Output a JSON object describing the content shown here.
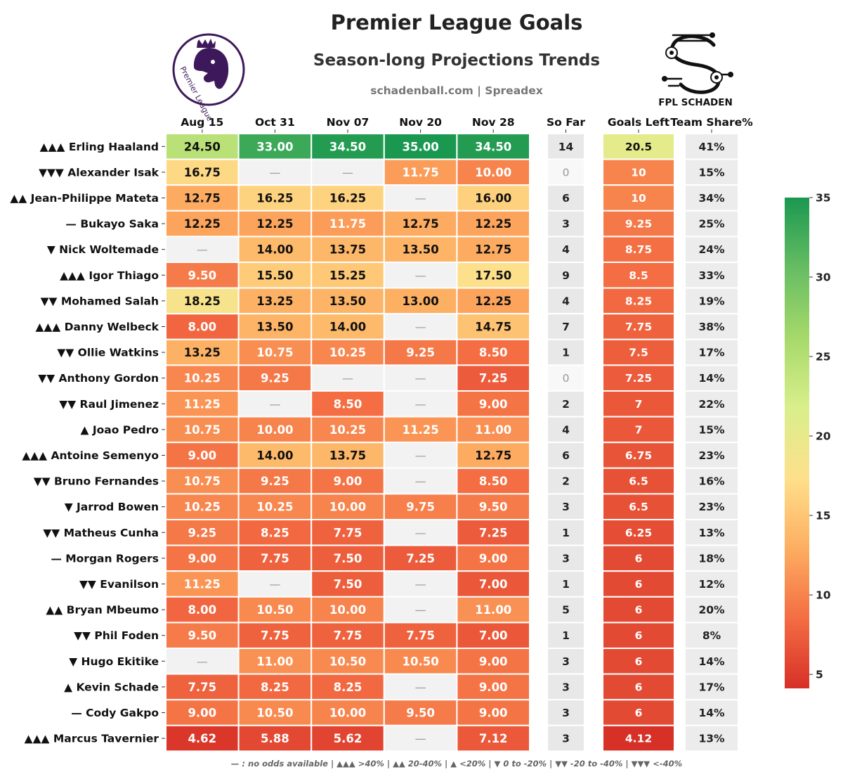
{
  "header": {
    "title": "Premier League Goals",
    "subtitle": "Season-long Projections Trends",
    "source": "schadenball.com | Spreadex",
    "left_logo": {
      "icon": "premier-league-lion-logo",
      "text": "Premier League",
      "color": "#3d195b"
    },
    "right_logo": {
      "icon": "fpl-schaden-logo",
      "text": "FPL SCHADEN"
    }
  },
  "footer": {
    "legend_note": "— : no odds available | ▲▲▲ >40% | ▲▲ 20-40% | ▲ <20% | ▼ 0 to -20% | ▼▼ -20 to -40% | ▼▼▼ <-40%"
  },
  "colors": {
    "missing_cell": "#f2f2f2",
    "so_far_cell": "#e8e8e8",
    "so_far_zero_cell": "#f8f8f8",
    "share_cell": "#ececec",
    "scale": [
      "#d73027",
      "#f46d43",
      "#fdae61",
      "#fee08b",
      "#d9ef8b",
      "#a6d96a",
      "#66bd63",
      "#1a9850"
    ]
  },
  "chart_data": {
    "type": "heatmap",
    "missing_symbol": "—",
    "columns": [
      "Aug 15",
      "Oct 31",
      "Nov 07",
      "Nov 20",
      "Nov 28"
    ],
    "extra_columns": [
      "So Far",
      "Goals Left",
      "Team Share%"
    ],
    "colorbar": {
      "min": 4.12,
      "max": 35,
      "ticks": [
        5,
        10,
        15,
        20,
        25,
        30,
        35
      ]
    },
    "rows": [
      {
        "trend": "▲▲▲",
        "player": "Erling Haaland",
        "values": [
          "24.50",
          "33.00",
          "34.50",
          "35.00",
          "34.50"
        ],
        "so_far": "14",
        "goals_left": "20.5",
        "team_share": "41%"
      },
      {
        "trend": "▼▼▼",
        "player": "Alexander Isak",
        "values": [
          "16.75",
          null,
          null,
          "11.75",
          "10.00"
        ],
        "so_far": "0",
        "goals_left": "10",
        "team_share": "15%"
      },
      {
        "trend": "▲▲",
        "player": "Jean-Philippe Mateta",
        "values": [
          "12.75",
          "16.25",
          "16.25",
          null,
          "16.00"
        ],
        "so_far": "6",
        "goals_left": "10",
        "team_share": "34%"
      },
      {
        "trend": "—",
        "player": "Bukayo Saka",
        "values": [
          "12.25",
          "12.25",
          "11.75",
          "12.75",
          "12.25"
        ],
        "so_far": "3",
        "goals_left": "9.25",
        "team_share": "25%"
      },
      {
        "trend": "▼",
        "player": "Nick Woltemade",
        "values": [
          null,
          "14.00",
          "13.75",
          "13.50",
          "12.75"
        ],
        "so_far": "4",
        "goals_left": "8.75",
        "team_share": "24%"
      },
      {
        "trend": "▲▲▲",
        "player": "Igor Thiago",
        "values": [
          "9.50",
          "15.50",
          "15.25",
          null,
          "17.50"
        ],
        "so_far": "9",
        "goals_left": "8.5",
        "team_share": "33%"
      },
      {
        "trend": "▼▼",
        "player": "Mohamed Salah",
        "values": [
          "18.25",
          "13.25",
          "13.50",
          "13.00",
          "12.25"
        ],
        "so_far": "4",
        "goals_left": "8.25",
        "team_share": "19%"
      },
      {
        "trend": "▲▲▲",
        "player": "Danny Welbeck",
        "values": [
          "8.00",
          "13.50",
          "14.00",
          null,
          "14.75"
        ],
        "so_far": "7",
        "goals_left": "7.75",
        "team_share": "38%"
      },
      {
        "trend": "▼▼",
        "player": "Ollie Watkins",
        "values": [
          "13.25",
          "10.75",
          "10.25",
          "9.25",
          "8.50"
        ],
        "so_far": "1",
        "goals_left": "7.5",
        "team_share": "17%"
      },
      {
        "trend": "▼▼",
        "player": "Anthony Gordon",
        "values": [
          "10.25",
          "9.25",
          null,
          null,
          "7.25"
        ],
        "so_far": "0",
        "goals_left": "7.25",
        "team_share": "14%"
      },
      {
        "trend": "▼▼",
        "player": "Raul Jimenez",
        "values": [
          "11.25",
          null,
          "8.50",
          null,
          "9.00"
        ],
        "so_far": "2",
        "goals_left": "7",
        "team_share": "22%"
      },
      {
        "trend": "▲",
        "player": "Joao Pedro",
        "values": [
          "10.75",
          "10.00",
          "10.25",
          "11.25",
          "11.00"
        ],
        "so_far": "4",
        "goals_left": "7",
        "team_share": "15%"
      },
      {
        "trend": "▲▲▲",
        "player": "Antoine Semenyo",
        "values": [
          "9.00",
          "14.00",
          "13.75",
          null,
          "12.75"
        ],
        "so_far": "6",
        "goals_left": "6.75",
        "team_share": "23%"
      },
      {
        "trend": "▼▼",
        "player": "Bruno Fernandes",
        "values": [
          "10.75",
          "9.25",
          "9.00",
          null,
          "8.50"
        ],
        "so_far": "2",
        "goals_left": "6.5",
        "team_share": "16%"
      },
      {
        "trend": "▼",
        "player": "Jarrod Bowen",
        "values": [
          "10.25",
          "10.25",
          "10.00",
          "9.75",
          "9.50"
        ],
        "so_far": "3",
        "goals_left": "6.5",
        "team_share": "23%"
      },
      {
        "trend": "▼▼",
        "player": "Matheus Cunha",
        "values": [
          "9.25",
          "8.25",
          "7.75",
          null,
          "7.25"
        ],
        "so_far": "1",
        "goals_left": "6.25",
        "team_share": "13%"
      },
      {
        "trend": "—",
        "player": "Morgan Rogers",
        "values": [
          "9.00",
          "7.75",
          "7.50",
          "7.25",
          "9.00"
        ],
        "so_far": "3",
        "goals_left": "6",
        "team_share": "18%"
      },
      {
        "trend": "▼▼",
        "player": "Evanilson",
        "values": [
          "11.25",
          null,
          "7.50",
          null,
          "7.00"
        ],
        "so_far": "1",
        "goals_left": "6",
        "team_share": "12%"
      },
      {
        "trend": "▲▲",
        "player": "Bryan Mbeumo",
        "values": [
          "8.00",
          "10.50",
          "10.00",
          null,
          "11.00"
        ],
        "so_far": "5",
        "goals_left": "6",
        "team_share": "20%"
      },
      {
        "trend": "▼▼",
        "player": "Phil Foden",
        "values": [
          "9.50",
          "7.75",
          "7.75",
          "7.75",
          "7.00"
        ],
        "so_far": "1",
        "goals_left": "6",
        "team_share": "8%"
      },
      {
        "trend": "▼",
        "player": "Hugo Ekitike",
        "values": [
          null,
          "11.00",
          "10.50",
          "10.50",
          "9.00"
        ],
        "so_far": "3",
        "goals_left": "6",
        "team_share": "14%"
      },
      {
        "trend": "▲",
        "player": "Kevin Schade",
        "values": [
          "7.75",
          "8.25",
          "8.25",
          null,
          "9.00"
        ],
        "so_far": "3",
        "goals_left": "6",
        "team_share": "17%"
      },
      {
        "trend": "—",
        "player": "Cody Gakpo",
        "values": [
          "9.00",
          "10.50",
          "10.00",
          "9.50",
          "9.00"
        ],
        "so_far": "3",
        "goals_left": "6",
        "team_share": "14%"
      },
      {
        "trend": "▲▲▲",
        "player": "Marcus Tavernier",
        "values": [
          "4.62",
          "5.88",
          "5.62",
          null,
          "7.12"
        ],
        "so_far": "3",
        "goals_left": "4.12",
        "team_share": "13%"
      }
    ]
  }
}
